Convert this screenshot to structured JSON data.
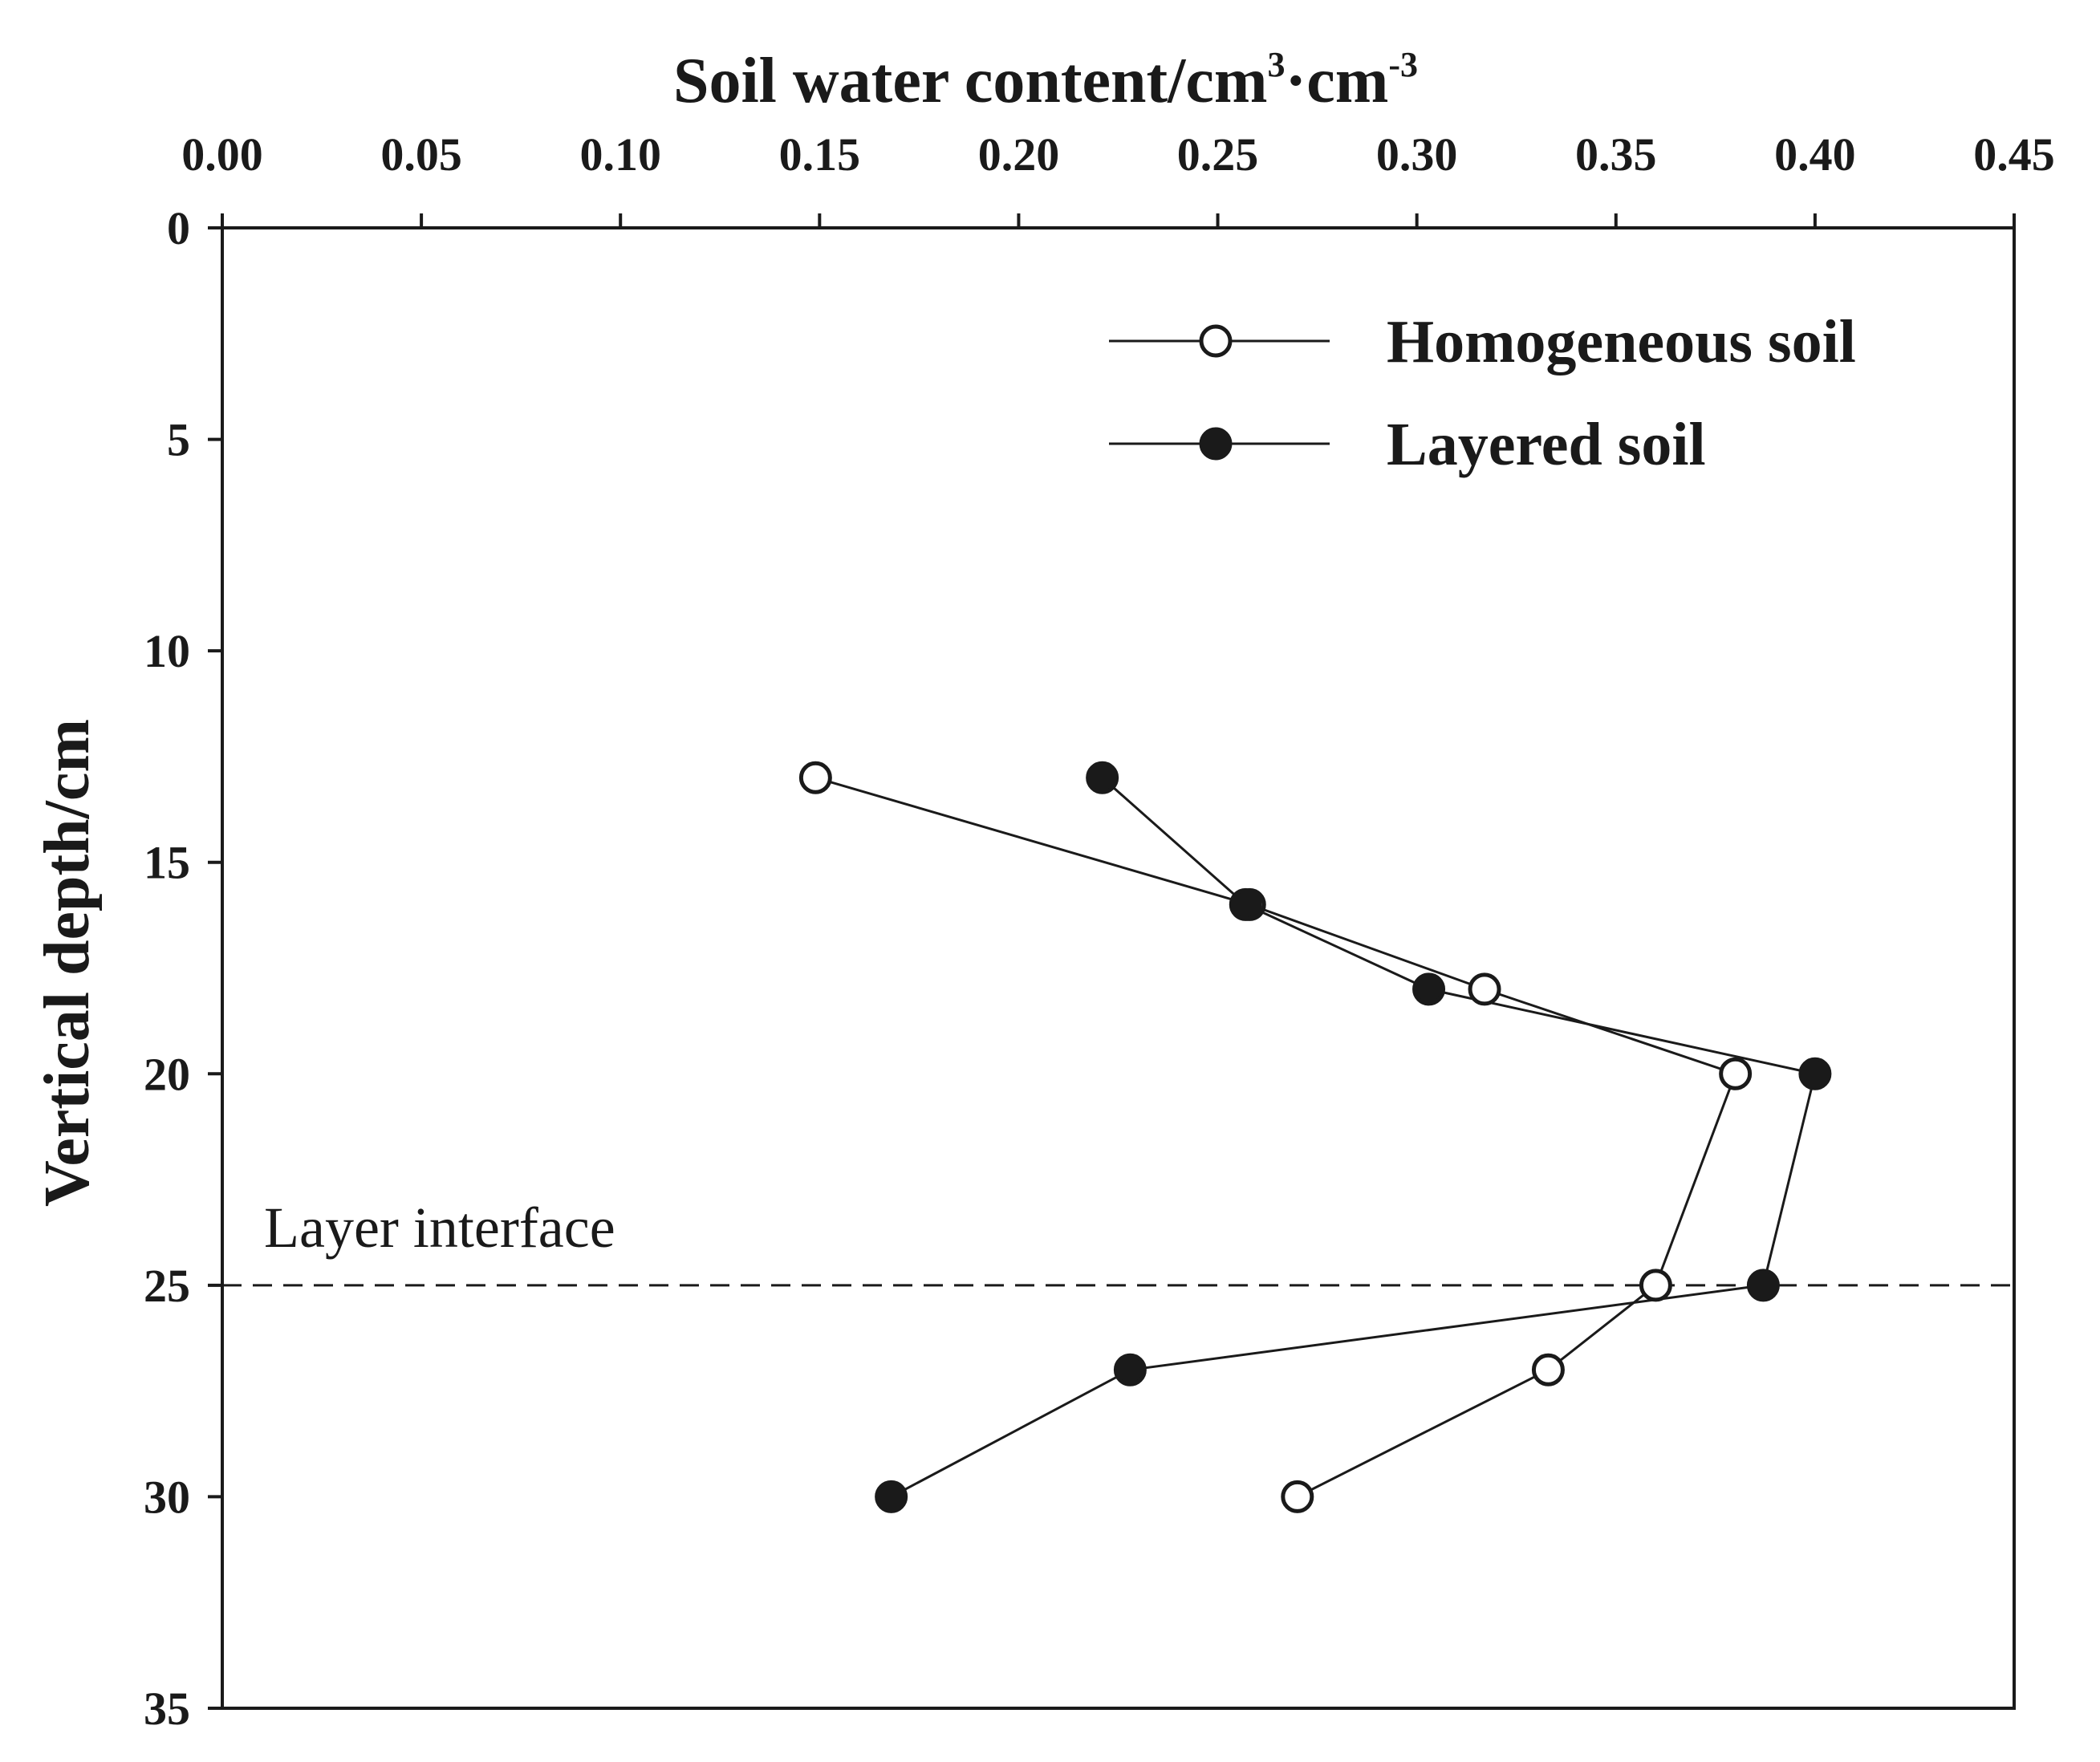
{
  "chart_data": {
    "type": "line",
    "title": "",
    "xlabel": "Soil water content/cm",
    "xlabel_sup1": "3",
    "xlabel_mid": "·cm",
    "xlabel_sup2": "-3",
    "ylabel": "Vertical depth/cm",
    "x_axis_position": "top",
    "y_inverted": true,
    "xlim": [
      0.0,
      0.45
    ],
    "ylim": [
      0,
      35
    ],
    "xticks": [
      "0.00",
      "0.05",
      "0.10",
      "0.15",
      "0.20",
      "0.25",
      "0.30",
      "0.35",
      "0.40",
      "0.45"
    ],
    "yticks": [
      "0",
      "5",
      "10",
      "15",
      "20",
      "25",
      "30",
      "35"
    ],
    "grid": false,
    "legend_position": "top-right",
    "series": [
      {
        "name": "Homogeneous soil",
        "marker": "open-circle",
        "points": [
          {
            "x": 0.149,
            "y": 13
          },
          {
            "x": 0.258,
            "y": 16
          },
          {
            "x": 0.317,
            "y": 18
          },
          {
            "x": 0.38,
            "y": 20
          },
          {
            "x": 0.36,
            "y": 25
          },
          {
            "x": 0.333,
            "y": 27
          },
          {
            "x": 0.27,
            "y": 30
          }
        ]
      },
      {
        "name": "Layered soil",
        "marker": "filled-circle",
        "points": [
          {
            "x": 0.221,
            "y": 13
          },
          {
            "x": 0.257,
            "y": 16
          },
          {
            "x": 0.303,
            "y": 18
          },
          {
            "x": 0.4,
            "y": 20
          },
          {
            "x": 0.387,
            "y": 25
          },
          {
            "x": 0.228,
            "y": 27
          },
          {
            "x": 0.168,
            "y": 30
          }
        ]
      }
    ],
    "annotations": [
      {
        "text": "Layer interface",
        "y": 25,
        "line_style": "dashed"
      }
    ]
  },
  "colors": {
    "ink": "#1a1a1a",
    "background": "#ffffff"
  }
}
